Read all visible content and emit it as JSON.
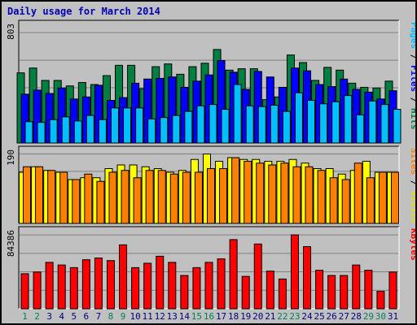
{
  "title": "Daily usage for March 2014",
  "chart_data": [
    {
      "type": "bar",
      "panel": "top",
      "categories": [
        "1",
        "2",
        "3",
        "4",
        "5",
        "6",
        "7",
        "8",
        "9",
        "10",
        "11",
        "12",
        "13",
        "14",
        "15",
        "16",
        "17",
        "18",
        "19",
        "20",
        "21",
        "22",
        "23",
        "24",
        "25",
        "26",
        "27",
        "28",
        "29",
        "30",
        "31"
      ],
      "weekend_days": [
        "1",
        "2",
        "8",
        "9",
        "15",
        "16",
        "22",
        "23",
        "29",
        "30"
      ],
      "ymax_label": "803",
      "ylim": [
        0,
        803
      ],
      "grid": true,
      "series": [
        {
          "name": "Hits",
          "color": "#008040",
          "values": [
            510,
            545,
            455,
            455,
            415,
            440,
            425,
            490,
            565,
            565,
            395,
            555,
            575,
            500,
            555,
            580,
            680,
            530,
            540,
            540,
            315,
            335,
            640,
            585,
            455,
            550,
            530,
            435,
            405,
            400,
            450
          ]
        },
        {
          "name": "Files",
          "color": "#0000ff",
          "values": [
            355,
            385,
            360,
            400,
            320,
            335,
            420,
            310,
            330,
            435,
            465,
            470,
            480,
            405,
            450,
            495,
            600,
            515,
            390,
            520,
            480,
            405,
            545,
            525,
            425,
            410,
            465,
            390,
            370,
            320,
            380
          ]
        },
        {
          "name": "Pages",
          "color": "#00c0ff",
          "values": [
            155,
            150,
            170,
            190,
            160,
            200,
            170,
            255,
            255,
            255,
            175,
            185,
            200,
            230,
            270,
            280,
            245,
            425,
            270,
            265,
            275,
            230,
            365,
            310,
            285,
            300,
            345,
            205,
            305,
            280,
            245
          ]
        }
      ],
      "legend_order": [
        "Pages",
        "Files",
        "Hits"
      ]
    },
    {
      "type": "bar",
      "panel": "middle",
      "categories": [
        "1",
        "2",
        "3",
        "4",
        "5",
        "6",
        "7",
        "8",
        "9",
        "10",
        "11",
        "12",
        "13",
        "14",
        "15",
        "16",
        "17",
        "18",
        "19",
        "20",
        "21",
        "22",
        "23",
        "24",
        "25",
        "26",
        "27",
        "28",
        "29",
        "30",
        "31"
      ],
      "ymax_label": "190",
      "ylim": [
        0,
        190
      ],
      "grid": true,
      "series": [
        {
          "name": "Visits",
          "color": "#ffff00",
          "values": [
            140,
            155,
            145,
            140,
            120,
            125,
            125,
            150,
            160,
            160,
            155,
            150,
            140,
            145,
            175,
            190,
            170,
            180,
            175,
            175,
            170,
            170,
            175,
            165,
            150,
            150,
            135,
            145,
            170,
            140,
            140
          ]
        },
        {
          "name": "Sites",
          "color": "#ff8000",
          "values": [
            155,
            155,
            145,
            140,
            120,
            135,
            115,
            140,
            145,
            125,
            145,
            145,
            135,
            140,
            140,
            150,
            150,
            180,
            170,
            165,
            160,
            165,
            155,
            155,
            145,
            125,
            120,
            165,
            125,
            140,
            140
          ]
        }
      ],
      "legend_order": [
        "Sites",
        "Visits"
      ]
    },
    {
      "type": "bar",
      "panel": "bottom",
      "categories": [
        "1",
        "2",
        "3",
        "4",
        "5",
        "6",
        "7",
        "8",
        "9",
        "10",
        "11",
        "12",
        "13",
        "14",
        "15",
        "16",
        "17",
        "18",
        "19",
        "20",
        "21",
        "22",
        "23",
        "24",
        "25",
        "26",
        "27",
        "28",
        "29",
        "30",
        "31"
      ],
      "ymax_label": "84386",
      "ylim": [
        0,
        84386
      ],
      "grid": true,
      "series": [
        {
          "name": "KBytes",
          "color": "#ff0000",
          "values": [
            40000,
            42000,
            53000,
            50000,
            47000,
            56000,
            58000,
            55000,
            73000,
            47000,
            52000,
            60000,
            53000,
            38000,
            47000,
            53000,
            57000,
            79000,
            37000,
            74000,
            43000,
            34000,
            84386,
            71000,
            44000,
            38000,
            38000,
            50000,
            44000,
            20000,
            42000
          ]
        }
      ],
      "legend_order": [
        "KBytes"
      ]
    }
  ]
}
